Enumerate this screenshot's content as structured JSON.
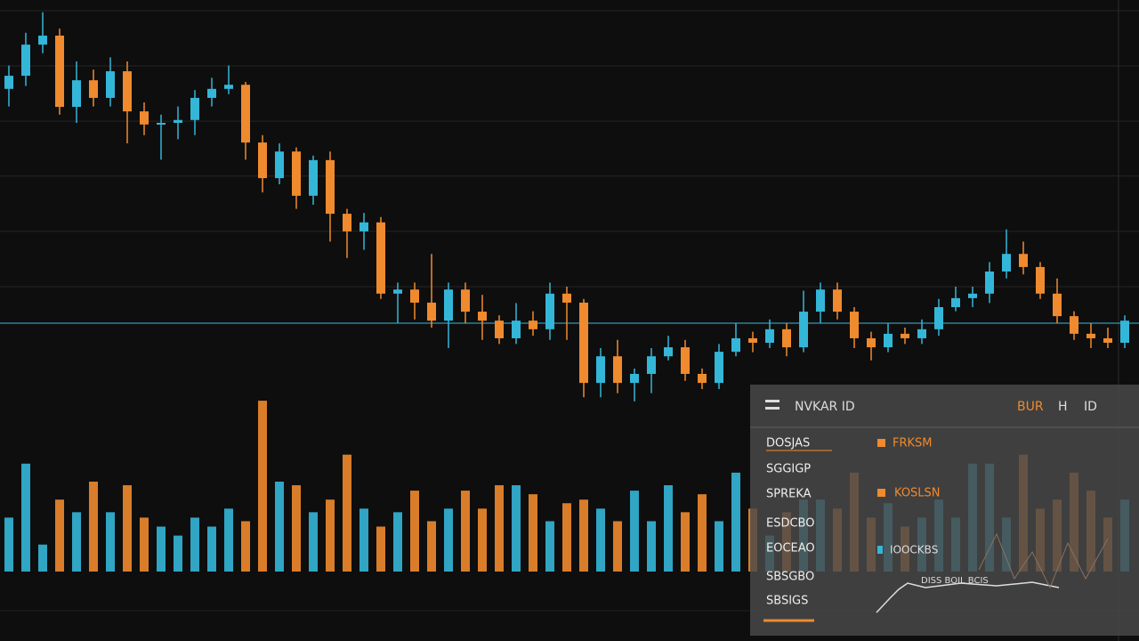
{
  "chart_data": {
    "type": "candlestick",
    "ylim": [
      0,
      100
    ],
    "vlim": [
      0,
      100
    ],
    "grid": true,
    "grid_lines": [
      97.4,
      83.9,
      70.4,
      57.0,
      43.5,
      30.0
    ],
    "reference_line": 21.1,
    "reference_color": "#3fb8d8",
    "up_color": "#34b6d8",
    "down_color": "#f08a2e",
    "open": [
      78.3,
      81.5,
      89.1,
      91.3,
      73.9,
      80.4,
      76.1,
      82.6,
      72.8,
      69.6,
      70.0,
      70.7,
      76.1,
      78.3,
      79.3,
      65.2,
      56.5,
      63.0,
      52.2,
      60.9,
      47.8,
      43.5,
      45.7,
      28.3,
      29.3,
      26.1,
      21.7,
      29.3,
      23.9,
      21.7,
      17.4,
      21.7,
      19.6,
      28.3,
      26.1,
      6.5,
      13.0,
      6.5,
      8.7,
      13.0,
      15.2,
      8.7,
      6.5,
      14.1,
      17.4,
      16.3,
      19.6,
      15.2,
      23.9,
      29.3,
      23.9,
      17.4,
      15.2,
      18.5,
      17.4,
      19.6,
      25.0,
      27.2,
      28.3,
      33.7,
      38.0,
      34.8,
      28.3,
      22.8,
      18.5,
      17.4,
      16.3
    ],
    "high": [
      84,
      92,
      97,
      93,
      85,
      83,
      86,
      85,
      75,
      72,
      74,
      78,
      81,
      84,
      80,
      67,
      65,
      64,
      62,
      63,
      49,
      48,
      47,
      31,
      31,
      38,
      31,
      31,
      28,
      23,
      26,
      24,
      31,
      30,
      27,
      15,
      17,
      10,
      15,
      18,
      17,
      10,
      16,
      21,
      19,
      22,
      21,
      29,
      31,
      31,
      25,
      19,
      21,
      20,
      22,
      27,
      30,
      30,
      36,
      44,
      41,
      36,
      32,
      24,
      21,
      20,
      23
    ],
    "low": [
      74,
      79,
      87,
      72,
      70,
      74,
      74,
      65,
      67,
      61,
      66,
      67,
      74,
      77,
      61,
      53,
      55,
      49,
      50,
      41,
      37,
      39,
      27,
      21,
      22,
      20,
      15,
      21,
      17,
      16,
      16,
      18,
      17,
      17,
      3,
      3,
      4,
      2,
      4,
      12,
      7,
      5,
      5,
      13,
      14,
      15,
      13,
      14,
      21,
      22,
      15,
      12,
      14,
      16,
      16,
      18,
      24,
      25,
      26,
      32,
      33,
      27,
      21,
      17,
      15,
      15,
      15
    ],
    "close": [
      81.5,
      89.1,
      91.3,
      73.9,
      80.4,
      76.1,
      82.6,
      72.8,
      69.6,
      70.0,
      70.7,
      76.1,
      78.3,
      79.3,
      65.2,
      56.5,
      63.0,
      52.2,
      60.9,
      47.8,
      43.5,
      45.7,
      28.3,
      29.3,
      26.1,
      21.7,
      29.3,
      23.9,
      21.7,
      17.4,
      21.7,
      19.6,
      28.3,
      26.1,
      6.5,
      13.0,
      6.5,
      8.7,
      13.0,
      15.2,
      8.7,
      6.5,
      14.1,
      17.4,
      16.3,
      19.6,
      15.2,
      23.9,
      29.3,
      23.9,
      17.4,
      15.2,
      18.5,
      17.4,
      19.6,
      25.0,
      27.2,
      28.3,
      33.7,
      38.0,
      34.8,
      28.3,
      22.8,
      18.5,
      17.4,
      16.3,
      21.7
    ],
    "volume": [
      30,
      60,
      15,
      40,
      33,
      50,
      33,
      48,
      30,
      25,
      20,
      30,
      25,
      35,
      28,
      95,
      50,
      48,
      33,
      40,
      65,
      35,
      25,
      33,
      45,
      28,
      35,
      45,
      35,
      48,
      48,
      43,
      28,
      38,
      40,
      35,
      28,
      45,
      28,
      48,
      33,
      43,
      28,
      55,
      35,
      20,
      33,
      40,
      40,
      35,
      55,
      30,
      38,
      25,
      30,
      40,
      30,
      60,
      60,
      30,
      65,
      35,
      40,
      55,
      45,
      30,
      40
    ]
  },
  "panel": {
    "title": "NVKAR ID",
    "header_right": [
      "BUR",
      "H",
      "ID"
    ],
    "rows": [
      "DOSJAS",
      "SGGIGP",
      "SPREKA",
      "ESDCBO",
      "EOCEAO",
      "SBSGBO",
      "SBSIGS"
    ],
    "items": [
      "FRKSM",
      "KOSLSN",
      "IOOCKBS"
    ],
    "note": "DISS BOIL BCIS"
  }
}
